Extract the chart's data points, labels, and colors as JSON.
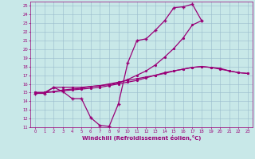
{
  "background_color": "#c8e8e8",
  "plot_bg_color": "#c8e8e8",
  "grid_color": "#99bbcc",
  "line_color": "#990077",
  "xlabel": "Windchill (Refroidissement éolien,°C)",
  "xlim": [
    -0.5,
    23.5
  ],
  "ylim": [
    11,
    25.5
  ],
  "series": [
    {
      "x": [
        0,
        1,
        2,
        3,
        4,
        5,
        6,
        7,
        8,
        9,
        10,
        11,
        12,
        13,
        14,
        15,
        16,
        17,
        18
      ],
      "y": [
        14.9,
        14.9,
        15.6,
        15.1,
        14.3,
        14.3,
        12.1,
        11.2,
        11.1,
        13.7,
        18.4,
        21.0,
        21.2,
        22.2,
        23.3,
        24.8,
        24.9,
        25.2,
        23.3
      ],
      "marker": "+",
      "markersize": 3.5,
      "lw": 0.9
    },
    {
      "x": [
        0,
        1,
        2,
        3,
        4,
        5,
        6,
        7,
        8,
        9,
        10,
        11,
        12,
        13,
        14,
        15,
        16,
        17,
        18,
        19,
        20,
        21,
        22,
        23
      ],
      "y": [
        15.0,
        15.0,
        15.1,
        15.3,
        15.4,
        15.5,
        15.7,
        15.8,
        16.0,
        16.2,
        16.4,
        16.6,
        16.8,
        17.0,
        17.3,
        17.5,
        17.7,
        17.9,
        18.0,
        17.9,
        17.7,
        17.5,
        17.3,
        17.2
      ],
      "marker": ".",
      "markersize": 2.5,
      "lw": 0.9
    },
    {
      "x": [
        0,
        1,
        2,
        3,
        4,
        5,
        6,
        7,
        8,
        9,
        10,
        11,
        12,
        13,
        14,
        15,
        16,
        17,
        18
      ],
      "y": [
        15.0,
        15.0,
        15.6,
        15.6,
        15.6,
        15.6,
        15.7,
        15.8,
        15.9,
        16.1,
        16.5,
        17.0,
        17.5,
        18.2,
        19.1,
        20.1,
        21.3,
        22.8,
        23.3
      ],
      "marker": ".",
      "markersize": 2.5,
      "lw": 0.9
    },
    {
      "x": [
        0,
        1,
        2,
        3,
        4,
        5,
        6,
        7,
        8,
        9,
        10,
        11,
        12,
        13,
        14,
        15,
        16,
        17,
        18,
        19,
        20,
        21,
        22,
        23
      ],
      "y": [
        15.0,
        15.0,
        15.1,
        15.2,
        15.3,
        15.4,
        15.5,
        15.6,
        15.8,
        16.0,
        16.2,
        16.4,
        16.7,
        17.0,
        17.2,
        17.5,
        17.7,
        17.9,
        18.0,
        17.9,
        17.8,
        17.5,
        17.3,
        17.2
      ],
      "marker": ".",
      "markersize": 2.5,
      "lw": 0.9
    }
  ]
}
